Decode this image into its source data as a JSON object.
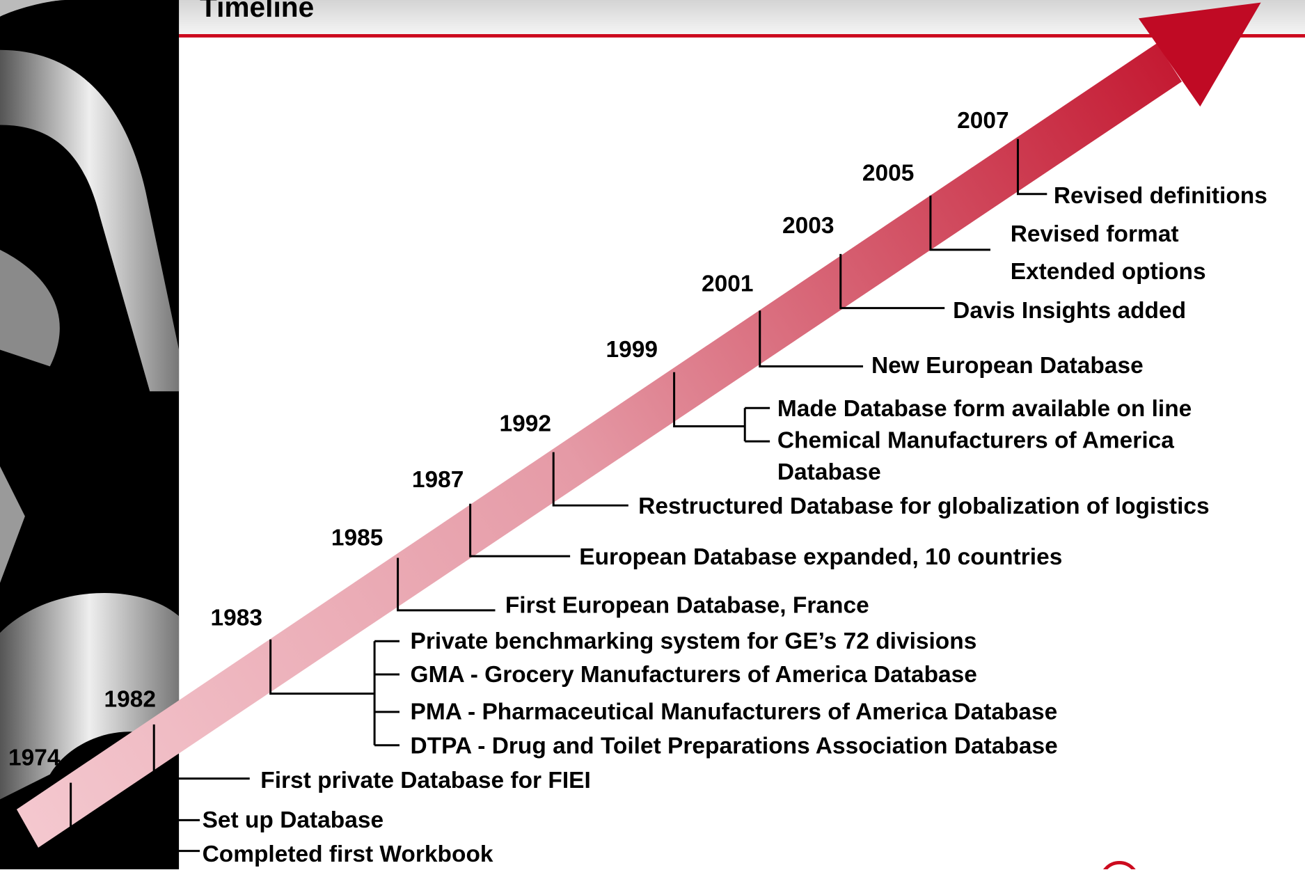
{
  "title": "Timeline",
  "events": [
    {
      "year": "1974",
      "items": [
        "Set up Database",
        "Completed first Workbook"
      ]
    },
    {
      "year": "1982",
      "items": [
        "First private Database for FIEI"
      ]
    },
    {
      "year": "1983",
      "items": [
        "Private benchmarking system for GE’s 72 divisions",
        "GMA - Grocery Manufacturers of America Database",
        "PMA - Pharmaceutical Manufacturers of America Database",
        "DTPA - Drug and Toilet Preparations Association Database"
      ]
    },
    {
      "year": "1985",
      "items": [
        "First European Database, France"
      ]
    },
    {
      "year": "1987",
      "items": [
        "European Database expanded, 10 countries"
      ]
    },
    {
      "year": "1992",
      "items": [
        "Restructured Database for globalization of logistics"
      ]
    },
    {
      "year": "1999",
      "items": [
        "Made Database form available on line",
        "Chemical Manufacturers of America Database"
      ]
    },
    {
      "year": "2001",
      "items": [
        "New European Database"
      ]
    },
    {
      "year": "2003",
      "items": [
        "Davis Insights added"
      ]
    },
    {
      "year": "2005",
      "items": [
        "Revised format",
        "Extended options"
      ]
    },
    {
      "year": "2007",
      "items": [
        "Revised definitions"
      ]
    }
  ]
}
